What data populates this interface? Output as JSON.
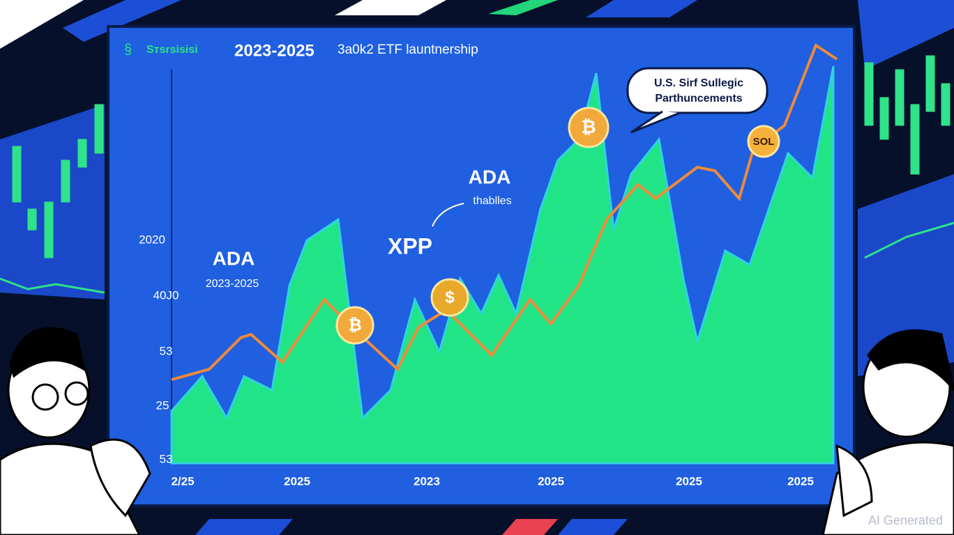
{
  "header": {
    "logo": "Sтsrsisisi",
    "title": "2023-2025",
    "subtitle": "3a0k2 ETF launtnership"
  },
  "callout": {
    "line1": "U.S. Sirf Sullegic",
    "line2": "Parthuncements"
  },
  "annotations": {
    "ada_right": "ADA",
    "thablles": "thablles",
    "xpp": "XPP",
    "ada_left": "ADA",
    "ada_left_range": "2023-2025",
    "sol": "SOL"
  },
  "y_labels": [
    "2020",
    "40J0",
    "53",
    "25",
    "53"
  ],
  "x_labels": [
    "2/25",
    "2025",
    "2023",
    "2025",
    "2025",
    "2025"
  ],
  "watermark": "AI Generated"
}
